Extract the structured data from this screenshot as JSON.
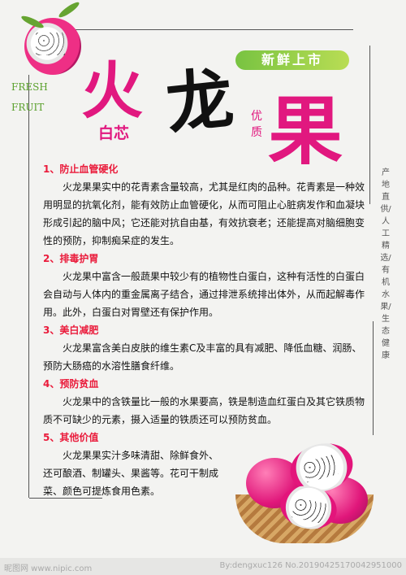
{
  "badge": "新鲜上市",
  "title": {
    "huo": "火",
    "long": "龙",
    "guo": "果",
    "baixin": "白芯",
    "youzhi": "优质"
  },
  "vertical": {
    "left": "FRESH FRUIT",
    "right": "产地直供/人工精选/有机水果/生态健康"
  },
  "sections": [
    {
      "title": "1、防止血管硬化",
      "body": "火龙果果实中的花青素含量较高，尤其是红肉的品种。花青素是一种效用明显的抗氧化剂，能有效防止血管硬化，从而可阻止心脏病发作和血凝块形成引起的脑中风；它还能对抗自由基，有效抗衰老；还能提高对脑细胞变性的预防，抑制痴呆症的发生。"
    },
    {
      "title": "2、排毒护胃",
      "body": "火龙果中富含一般蔬果中较少有的植物性白蛋白，这种有活性的白蛋白会自动与人体内的重金属离子结合，通过排泄系统排出体外，从而起解毒作用。此外，白蛋白对胃壁还有保护作用。"
    },
    {
      "title": "3、美白减肥",
      "body": "火龙果富含美白皮肤的维生素C及丰富的具有减肥、降低血糖、润肠、预防大肠癌的水溶性膳食纤维。"
    },
    {
      "title": "4、预防贫血",
      "body": "火龙果中的含铁量比一般的水果要高，铁是制造血红蛋白及其它铁质物质不可缺少的元素，摄入适量的铁质还可以预防贫血。"
    },
    {
      "title": "5、其他价值",
      "body": "火龙果果实汁多味清甜、除鲜食外、还可酿酒、制罐头、果酱等。花可干制成菜、颜色可提炼食用色素。"
    }
  ],
  "watermark": {
    "left": "昵图网 www.nipic.com",
    "right": "By:dengxuc126 No.20190425170042951000"
  }
}
